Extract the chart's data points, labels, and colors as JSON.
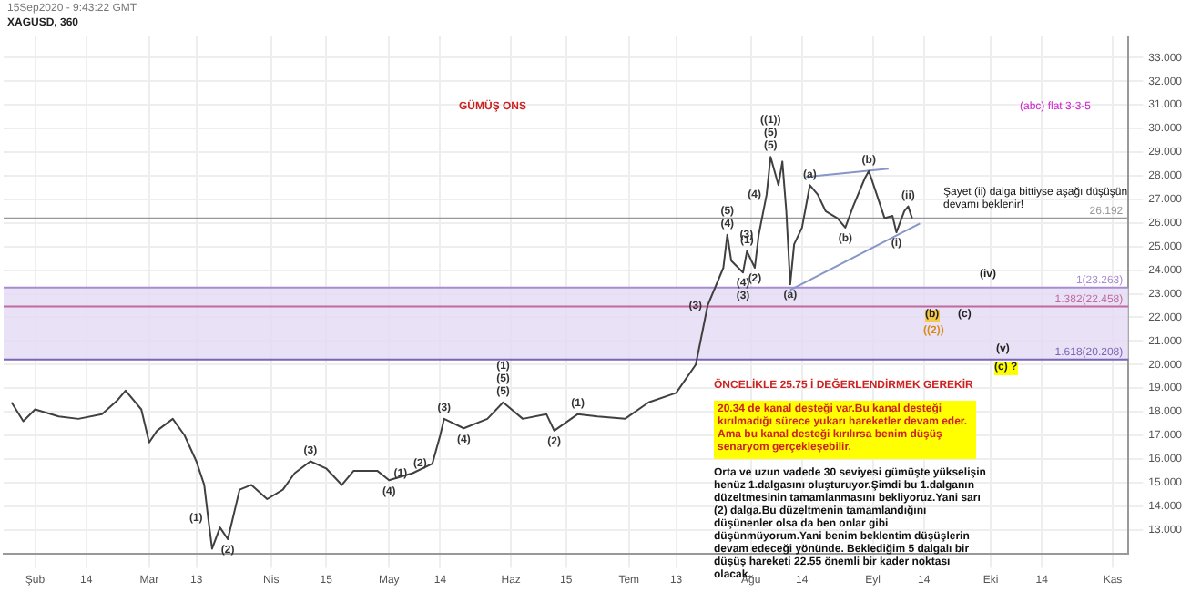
{
  "chart_data": {
    "type": "line",
    "title": "XAGUSD, 360",
    "subtitle": "15Sep2020 - 9:43:22 GMT",
    "x": [
      "2020-01-26",
      "2020-01-29",
      "2020-02-01",
      "2020-02-07",
      "2020-02-12",
      "2020-02-18",
      "2020-02-22",
      "2020-02-24",
      "2020-02-28",
      "2020-03-01",
      "2020-03-03",
      "2020-03-07",
      "2020-03-10",
      "2020-03-13",
      "2020-03-15",
      "2020-03-16",
      "2020-03-17",
      "2020-03-19",
      "2020-03-21",
      "2020-03-24",
      "2020-03-27",
      "2020-03-31",
      "2020-04-04",
      "2020-04-07",
      "2020-04-11",
      "2020-04-15",
      "2020-04-19",
      "2020-04-22",
      "2020-04-28",
      "2020-05-01",
      "2020-05-07",
      "2020-05-12",
      "2020-05-14",
      "2020-05-15",
      "2020-05-20",
      "2020-05-26",
      "2020-05-30",
      "2020-06-04",
      "2020-06-10",
      "2020-06-12",
      "2020-06-18",
      "2020-06-23",
      "2020-06-30",
      "2020-07-06",
      "2020-07-13",
      "2020-07-18",
      "2020-07-21",
      "2020-07-25",
      "2020-07-26",
      "2020-07-27",
      "2020-07-30",
      "2020-07-31",
      "2020-08-02",
      "2020-08-03",
      "2020-08-05",
      "2020-08-06",
      "2020-08-08",
      "2020-08-09",
      "2020-08-10",
      "2020-08-11",
      "2020-08-12",
      "2020-08-14",
      "2020-08-16",
      "2020-08-18",
      "2020-08-20",
      "2020-08-23",
      "2020-08-25",
      "2020-08-27",
      "2020-08-30",
      "2020-08-31",
      "2020-09-02",
      "2020-09-04",
      "2020-09-06",
      "2020-09-07",
      "2020-09-09",
      "2020-09-10",
      "2020-09-11"
    ],
    "series": [
      {
        "color": "#404040",
        "values": [
          18.4,
          17.6,
          18.1,
          17.8,
          17.7,
          17.9,
          18.5,
          18.9,
          18.1,
          16.7,
          17.2,
          17.7,
          17.0,
          15.9,
          14.9,
          13.5,
          12.2,
          13.1,
          12.6,
          14.7,
          14.9,
          14.3,
          14.7,
          15.4,
          15.9,
          15.6,
          14.9,
          15.5,
          15.5,
          15.1,
          15.4,
          15.8,
          17.0,
          17.7,
          17.3,
          17.7,
          18.4,
          17.7,
          17.9,
          17.2,
          17.9,
          17.8,
          17.7,
          18.4,
          18.8,
          20.0,
          22.5,
          24.1,
          25.5,
          24.4,
          23.9,
          24.8,
          24.1,
          25.5,
          27.2,
          28.8,
          27.6,
          28.6,
          26.5,
          23.4,
          25.1,
          25.8,
          27.6,
          27.2,
          26.5,
          26.2,
          25.8,
          26.7,
          27.9,
          28.2,
          27.2,
          26.2,
          26.3,
          25.6,
          26.5,
          26.7,
          26.2
        ]
      },
      {
        "type": "line",
        "color": "#8796c8",
        "x": [
          "2020-08-15",
          "2020-09-05"
        ],
        "values": [
          27.95,
          28.3
        ]
      },
      {
        "type": "line",
        "color": "#8796c8",
        "x": [
          "2020-08-11",
          "2020-09-13"
        ],
        "values": [
          23.16,
          25.98
        ]
      }
    ],
    "xlim": [
      "2020-01-24",
      "2020-11-05"
    ],
    "xticks": [
      {
        "value": "2020-02-01",
        "label": "Şub"
      },
      {
        "value": "2020-02-14",
        "label": "14"
      },
      {
        "value": "2020-03-01",
        "label": "Mar"
      },
      {
        "value": "2020-03-13",
        "label": "13"
      },
      {
        "value": "2020-04-01",
        "label": "Nis"
      },
      {
        "value": "2020-04-15",
        "label": "15"
      },
      {
        "value": "2020-05-01",
        "label": "May"
      },
      {
        "value": "2020-05-14",
        "label": "14"
      },
      {
        "value": "2020-06-01",
        "label": "Haz"
      },
      {
        "value": "2020-06-15",
        "label": "15"
      },
      {
        "value": "2020-07-01",
        "label": "Tem"
      },
      {
        "value": "2020-07-13",
        "label": "13"
      },
      {
        "value": "2020-08-01",
        "label": "Ağu"
      },
      {
        "value": "2020-08-14",
        "label": "14"
      },
      {
        "value": "2020-09-01",
        "label": "Eyl"
      },
      {
        "value": "2020-09-14",
        "label": "14"
      },
      {
        "value": "2020-10-01",
        "label": "Eki"
      },
      {
        "value": "2020-10-14",
        "label": "14"
      },
      {
        "value": "2020-11-01",
        "label": "Kas"
      }
    ],
    "ylim": [
      12.0,
      33.9
    ],
    "yticks": [
      {
        "value": 13,
        "label": "13.000"
      },
      {
        "value": 14,
        "label": "14.000"
      },
      {
        "value": 15,
        "label": "15.000"
      },
      {
        "value": 16,
        "label": "16.000"
      },
      {
        "value": 17,
        "label": "17.000"
      },
      {
        "value": 18,
        "label": "18.000"
      },
      {
        "value": 19,
        "label": "19.000"
      },
      {
        "value": 20,
        "label": "20.000"
      },
      {
        "value": 21,
        "label": "21.000"
      },
      {
        "value": 22,
        "label": "22.000"
      },
      {
        "value": 23,
        "label": "23.000"
      },
      {
        "value": 24,
        "label": "24.000"
      },
      {
        "value": 25,
        "label": "25.000"
      },
      {
        "value": 26,
        "label": "26.000"
      },
      {
        "value": 27,
        "label": "27.000"
      },
      {
        "value": 28,
        "label": "28.000"
      },
      {
        "value": 29,
        "label": "29.000"
      },
      {
        "value": 30,
        "label": "30.000"
      },
      {
        "value": 31,
        "label": "31.000"
      },
      {
        "value": 32,
        "label": "32.000"
      },
      {
        "value": 33,
        "label": "33.000"
      }
    ],
    "grid": true,
    "legend": false,
    "marker": "none",
    "line_style": "solid",
    "bands": [
      {
        "axis": "y",
        "from": 20.208,
        "to": 23.263,
        "color": "#e3d9f3"
      }
    ],
    "ref_lines": [
      {
        "axis": "y",
        "value": 26.192,
        "label": "26.192",
        "color": "#999999"
      },
      {
        "axis": "y",
        "value": 23.263,
        "label": "1(23.263)",
        "color": "#a98bd0"
      },
      {
        "axis": "y",
        "value": 22.458,
        "label": "1.382(22.458)",
        "color": "#c06aa0"
      },
      {
        "axis": "y",
        "value": 20.208,
        "label": "1.618(20.208)",
        "color": "#7a64b8"
      }
    ],
    "annotations": [
      "GÜMÜŞ ONS",
      "(abc) flat 3-3-5",
      "Şayet (ii) dalga bittiyse aşağı düşüşün devamı beklenir!",
      "ÖNCELİKLE 25.75 İ DEĞERLENDİRMEK GEREKİR",
      "20.34 de kanal desteği var.Bu kanal desteği kırılmadığı sürece yukarı hareketler devam eder. Ama bu kanal desteği kırılırsa benim düşüş senaryom gerçekleşebilir.",
      "Orta ve uzun vadede 30 seviyesi gümüşte yükselişin henüz 1.dalgasını oluşturuyor.Şimdi bu 1.dalganın düzeltmesinin tamamlanmasını bekliyoruz.Yani sarı (2) dalga.Bu düzeltmenin tamamlandığını düşünenler olsa da ben onlar gibi düşünmüyorum.Yani benim beklentim düşüşlerin devam edeceği yönünde. Beklediğim 5 dalgalı bir düşüş hareketi 22.55 önemli bir kader noktası olacak.",
      "(iv)",
      "(b)",
      "((2))",
      "(c)",
      "(v)",
      "(c) ?",
      {
        "text": "(1)",
        "x": "2020-03-16",
        "y": 13.5
      },
      {
        "text": "(2)",
        "x": "2020-03-21",
        "y": 12.6
      },
      {
        "text": "(3)",
        "x": "2020-04-11",
        "y": 15.9
      },
      {
        "text": "(4)",
        "x": "2020-05-01",
        "y": 15.1
      },
      {
        "text": "(1)",
        "x": "2020-05-07",
        "y": 15.4
      },
      {
        "text": "(2)",
        "x": "2020-05-12",
        "y": 15.8
      },
      {
        "text": "(3)",
        "x": "2020-05-15",
        "y": 17.7
      },
      {
        "text": "(4)",
        "x": "2020-05-20",
        "y": 17.3
      },
      {
        "text": "(5)",
        "x": "2020-05-30",
        "y": 18.4
      },
      {
        "text": "(5)",
        "x": "2020-05-30",
        "y": 18.4
      },
      {
        "text": "(1)",
        "x": "2020-05-30",
        "y": 18.4
      },
      {
        "text": "(2)",
        "x": "2020-06-12",
        "y": 17.2
      },
      {
        "text": "(1)",
        "x": "2020-06-18",
        "y": 17.9
      },
      {
        "text": "(3)",
        "x": "2020-07-21",
        "y": 22.5
      },
      {
        "text": "(4)",
        "x": "2020-07-30",
        "y": 23.9
      },
      {
        "text": "(3)",
        "x": "2020-07-30",
        "y": 23.9
      },
      {
        "text": "(4)",
        "x": "2020-07-26",
        "y": 25.5
      },
      {
        "text": "(5)",
        "x": "2020-07-26",
        "y": 25.5
      },
      {
        "text": "(1)",
        "x": "2020-07-31",
        "y": 24.8
      },
      {
        "text": "(2)",
        "x": "2020-08-02",
        "y": 24.1
      },
      {
        "text": "(3)",
        "x": "2020-08-03",
        "y": 25.5
      },
      {
        "text": "(4)",
        "x": "2020-08-05",
        "y": 27.2
      },
      {
        "text": "(5)",
        "x": "2020-08-06",
        "y": 28.8
      },
      {
        "text": "(5)",
        "x": "2020-08-06",
        "y": 28.8
      },
      {
        "text": "((1))",
        "x": "2020-08-06",
        "y": 28.8
      },
      {
        "text": "(a)",
        "x": "2020-08-16",
        "y": 27.6
      },
      {
        "text": "(b)",
        "x": "2020-08-25",
        "y": 25.8
      },
      {
        "text": "(b)",
        "x": "2020-08-31",
        "y": 28.2
      },
      {
        "text": "(i)",
        "x": "2020-09-07",
        "y": 25.6
      },
      {
        "text": "(ii)",
        "x": "2020-09-10",
        "y": 26.7
      },
      {
        "text": "(a)",
        "x": "2020-08-11",
        "y": 23.4
      }
    ]
  }
}
